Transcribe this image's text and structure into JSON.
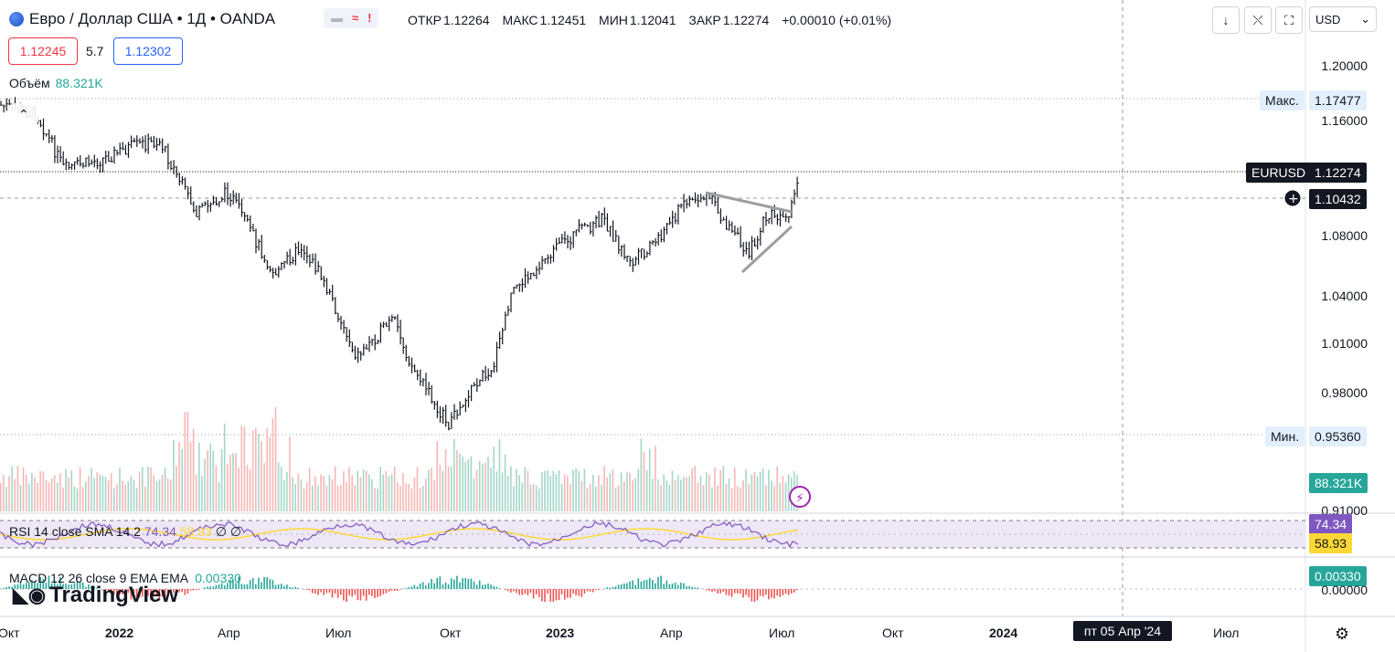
{
  "header": {
    "title": "Евро / Доллар США • 1Д • OANDA",
    "pills": [
      "▬",
      "≈",
      "!"
    ],
    "ohlc": [
      {
        "label": "ОТКР",
        "value": "1.12264"
      },
      {
        "label": "МАКС",
        "value": "1.12451"
      },
      {
        "label": "МИН",
        "value": "1.12041"
      },
      {
        "label": "ЗАКР",
        "value": "1.12274"
      },
      {
        "label": "",
        "value": "+0.00010 (+0.01%)"
      }
    ],
    "sell_price": "1.12245",
    "spread": "5.7",
    "buy_price": "1.12302",
    "volume_label": "Объём",
    "volume_value": "88.321K",
    "currency": "USD"
  },
  "price_axis": {
    "ticks": [
      "1.20000",
      "1.16000",
      "1.08000",
      "1.04000",
      "1.01000",
      "0.98000",
      "0.91000"
    ],
    "max_label": "Макс.",
    "max_value": "1.17477",
    "min_label": "Мин.",
    "min_value": "0.95360",
    "symbol": "EURUSD",
    "last_value": "1.12274",
    "crosshair_value": "1.10432",
    "volume_tag": "88.321K"
  },
  "rsi": {
    "label": "RSI 14 close SMA 14 2",
    "v1": "74.34",
    "v2": "58.93",
    "v3": "∅ ∅",
    "tag1": "74.34",
    "tag2": "58.93"
  },
  "macd": {
    "label": "MACD 12 26 close 9 EMA EMA",
    "value": "0.00330",
    "tag": "0.00330",
    "zero": "0.00000"
  },
  "time_axis": {
    "labels": [
      {
        "text": "Окт",
        "bold": false
      },
      {
        "text": "2022",
        "bold": true
      },
      {
        "text": "Апр",
        "bold": false
      },
      {
        "text": "Июл",
        "bold": false
      },
      {
        "text": "Окт",
        "bold": false
      },
      {
        "text": "2023",
        "bold": true
      },
      {
        "text": "Апр",
        "bold": false
      },
      {
        "text": "Июл",
        "bold": false
      },
      {
        "text": "Окт",
        "bold": false
      },
      {
        "text": "2024",
        "bold": true
      },
      {
        "text": "Июл",
        "bold": false
      }
    ],
    "crosshair_date": "пт 05 Апр '24"
  },
  "branding": "TradingView",
  "colors": {
    "up": "#26a69a",
    "down": "#ef5350",
    "line": "#131722",
    "rsi": "#7e57c2",
    "rsi_ma": "#fdd835"
  }
}
